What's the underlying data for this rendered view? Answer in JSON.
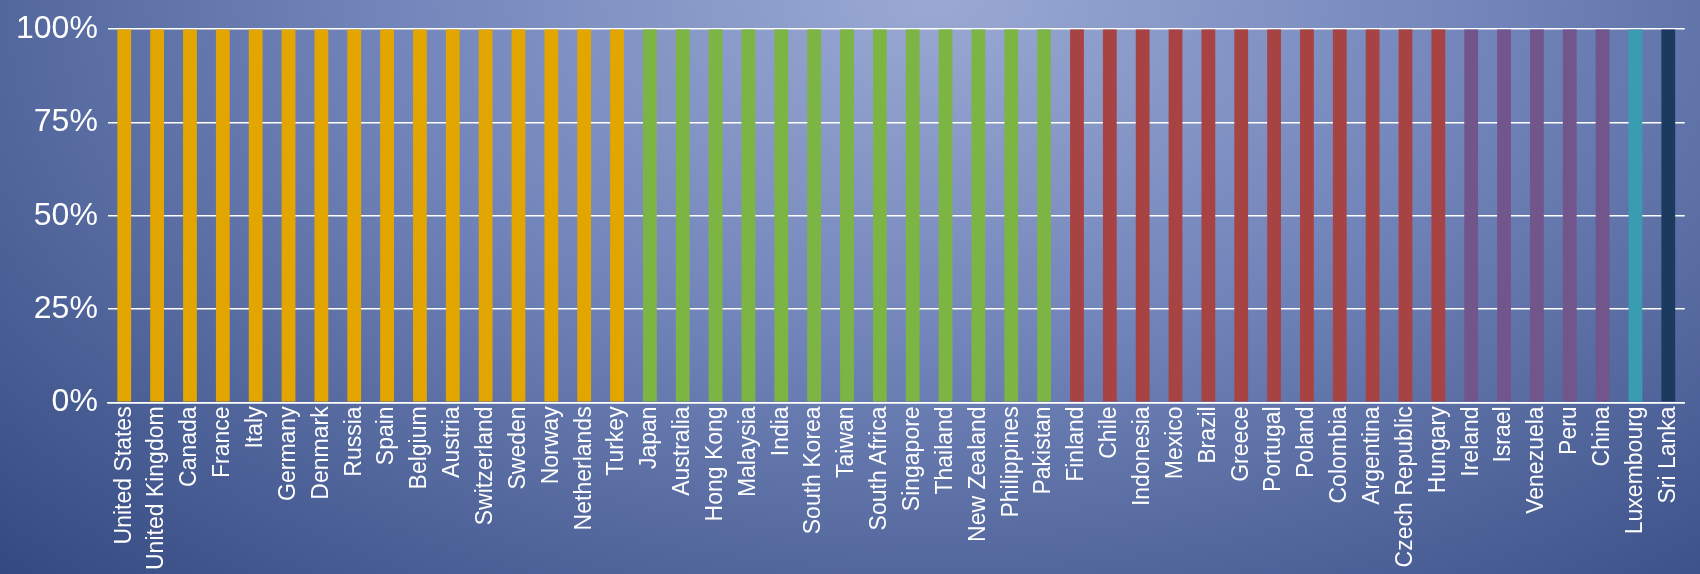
{
  "chart_data": {
    "type": "bar",
    "categories": [
      "United States",
      "United Kingdom",
      "Canada",
      "France",
      "Italy",
      "Germany",
      "Denmark",
      "Russia",
      "Spain",
      "Belgium",
      "Austria",
      "Switzerland",
      "Sweden",
      "Norway",
      "Netherlands",
      "Turkey",
      "Japan",
      "Australia",
      "Hong Kong",
      "Malaysia",
      "India",
      "South Korea",
      "Taiwan",
      "South Africa",
      "Singapore",
      "Thailand",
      "New Zealand",
      "Philippines",
      "Pakistan",
      "Finland",
      "Chile",
      "Indonesia",
      "Mexico",
      "Brazil",
      "Greece",
      "Portugal",
      "Poland",
      "Colombia",
      "Argentina",
      "Czech Republic",
      "Hungary",
      "Ireland",
      "Israel",
      "Venezuela",
      "Peru",
      "China",
      "Luxembourg",
      "Sri Lanka"
    ],
    "values": [
      100,
      100,
      100,
      100,
      100,
      100,
      100,
      100,
      100,
      100,
      100,
      100,
      100,
      100,
      100,
      100,
      100,
      100,
      100,
      100,
      100,
      100,
      100,
      100,
      100,
      100,
      100,
      100,
      100,
      100,
      100,
      100,
      100,
      100,
      100,
      100,
      100,
      100,
      100,
      100,
      100,
      100,
      100,
      100,
      100,
      100,
      100,
      100
    ],
    "colors": [
      "#e3a600",
      "#e3a600",
      "#e3a600",
      "#e3a600",
      "#e3a600",
      "#e3a600",
      "#e3a600",
      "#e3a600",
      "#e3a600",
      "#e3a600",
      "#e3a600",
      "#e3a600",
      "#e3a600",
      "#e3a600",
      "#e3a600",
      "#e3a600",
      "#7db544",
      "#7db544",
      "#7db544",
      "#7db544",
      "#7db544",
      "#7db544",
      "#7db544",
      "#7db544",
      "#7db544",
      "#7db544",
      "#7db544",
      "#7db544",
      "#7db544",
      "#a84343",
      "#a84343",
      "#a84343",
      "#a84343",
      "#a84343",
      "#a84343",
      "#a84343",
      "#a84343",
      "#a84343",
      "#a84343",
      "#a84343",
      "#a84343",
      "#72558a",
      "#72558a",
      "#72558a",
      "#72558a",
      "#72558a",
      "#3a9cb0",
      "#1c3a5e"
    ],
    "ylim": [
      0,
      100
    ],
    "yticks": [
      {
        "value": 0,
        "label": "0%"
      },
      {
        "value": 25,
        "label": "25%"
      },
      {
        "value": 50,
        "label": "50%"
      },
      {
        "value": 75,
        "label": "75%"
      },
      {
        "value": 100,
        "label": "100%"
      }
    ],
    "grid": "y",
    "legend": false
  }
}
